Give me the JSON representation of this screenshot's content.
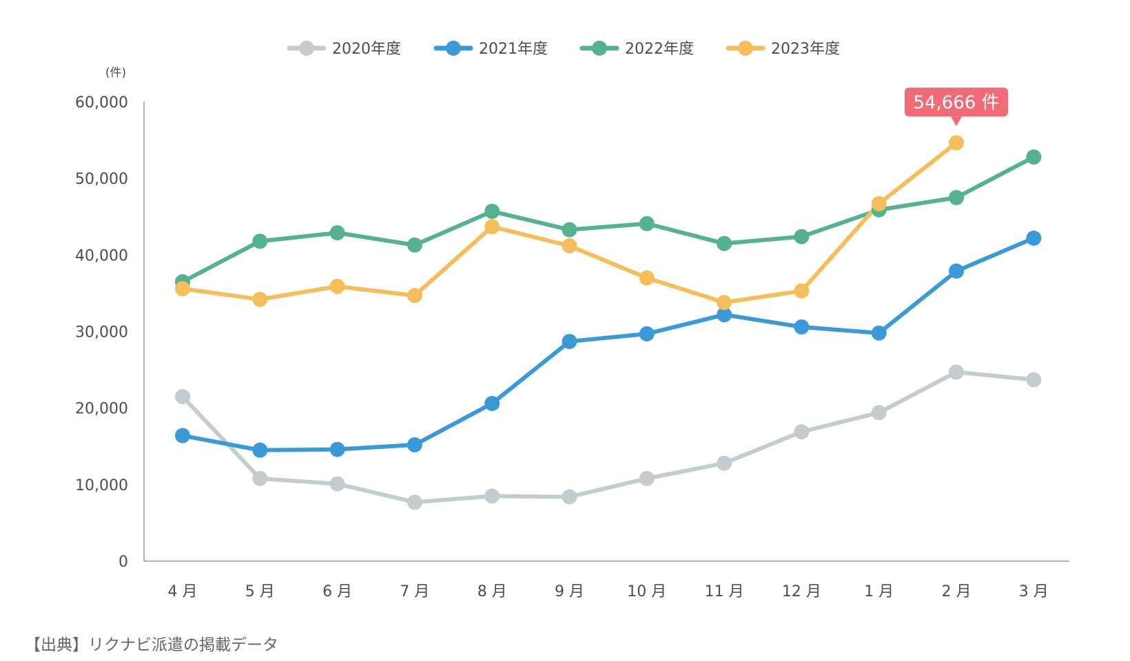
{
  "chart_data": {
    "type": "line",
    "title": "",
    "xlabel": "",
    "ylabel": "",
    "y_unit": "(件)",
    "categories": [
      "4 月",
      "5 月",
      "6 月",
      "7 月",
      "8 月",
      "9 月",
      "10 月",
      "11 月",
      "12 月",
      "1 月",
      "2 月",
      "3 月"
    ],
    "ylim": [
      0,
      60000
    ],
    "yticks": [
      0,
      10000,
      20000,
      30000,
      40000,
      50000,
      60000
    ],
    "ytick_labels": [
      "0",
      "10,000",
      "20,000",
      "30,000",
      "40,000",
      "50,000",
      "60,000"
    ],
    "grid": false,
    "legend_position": "top-center",
    "series": [
      {
        "name": "2020年度",
        "color": "#c5ccd0",
        "values": [
          21500,
          10800,
          10100,
          7700,
          8500,
          8400,
          10800,
          12800,
          16900,
          19400,
          24700,
          23700
        ]
      },
      {
        "name": "2021年度",
        "color": "#3a9ad9",
        "values": [
          16400,
          14500,
          14600,
          15200,
          20600,
          28700,
          29700,
          32200,
          30600,
          29800,
          37900,
          42200
        ]
      },
      {
        "name": "2022年度",
        "color": "#55b28e",
        "values": [
          36500,
          41800,
          42900,
          41300,
          45700,
          43300,
          44100,
          41500,
          42400,
          45900,
          47500,
          52800
        ]
      },
      {
        "name": "2023年度",
        "color": "#f5be5b",
        "values": [
          35600,
          34200,
          35900,
          34700,
          43700,
          41200,
          37000,
          33800,
          35300,
          46700,
          54666,
          null
        ]
      }
    ],
    "annotation": {
      "text": "54,666 件",
      "series_index": 3,
      "point_index": 10,
      "color": "#f06b76"
    }
  },
  "footer": {
    "source": "【出典】リクナビ派遣の掲載データ"
  }
}
